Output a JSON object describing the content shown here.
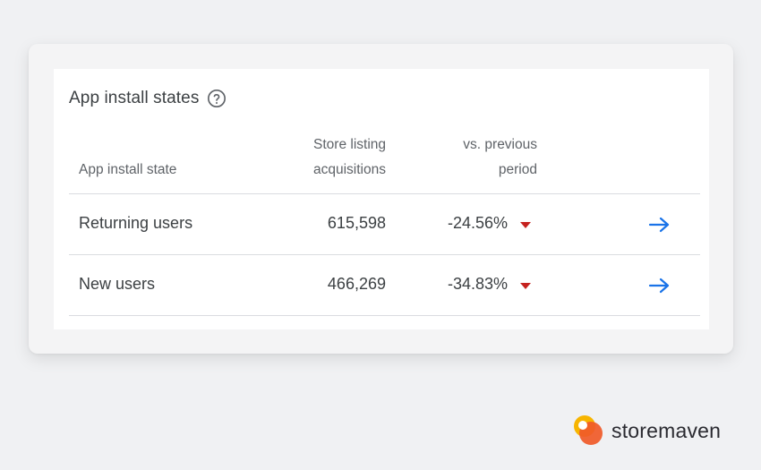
{
  "card": {
    "title": "App install states",
    "help_icon": "question-circle-icon"
  },
  "table": {
    "columns": {
      "state": "App install state",
      "acquisitions_line1": "Store listing",
      "acquisitions_line2": "acquisitions",
      "change_line1": "vs. previous",
      "change_line2": "period"
    },
    "rows": [
      {
        "name": "Returning users",
        "value": "615,598",
        "change": "-24.56%",
        "trend": "down",
        "action_icon": "arrow-right-icon"
      },
      {
        "name": "New users",
        "value": "466,269",
        "change": "-34.83%",
        "trend": "down",
        "action_icon": "arrow-right-icon"
      }
    ]
  },
  "colors": {
    "trend_down": "#c5221f",
    "link_arrow": "#1a73e8"
  },
  "brand": {
    "name": "storemaven",
    "logo_icon": "storemaven-logo"
  }
}
